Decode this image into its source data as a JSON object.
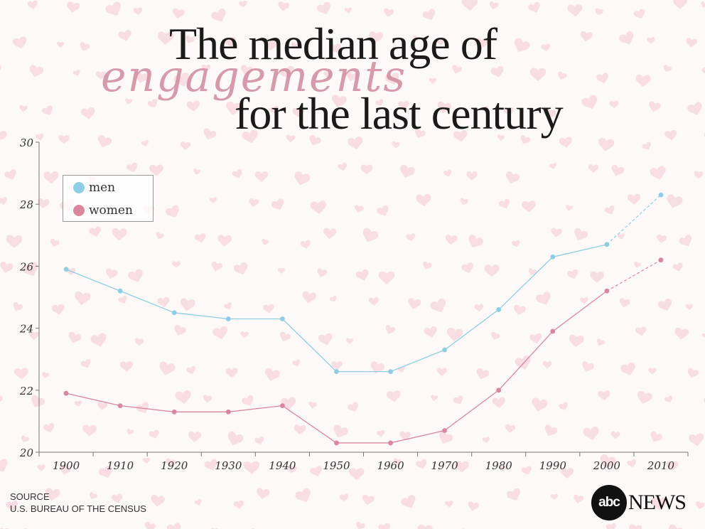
{
  "title": {
    "line1": "The median age of",
    "script": "engagements",
    "line3": "for the last century"
  },
  "legend": {
    "men": "men",
    "women": "women"
  },
  "source": {
    "label": "SOURCE",
    "text": "U.S. BUREAU OF THE CENSUS"
  },
  "logo": {
    "circle": "abc",
    "text": "NEWS"
  },
  "colors": {
    "men": "#8ecde3",
    "women": "#d9879e",
    "heart": "#f5d3d9",
    "axis": "#777777"
  },
  "chart_data": {
    "type": "line",
    "title": "The median age of engagements for the last century",
    "xlabel": "",
    "ylabel": "",
    "categories": [
      "1900",
      "1910",
      "1920",
      "1930",
      "1940",
      "1950",
      "1960",
      "1970",
      "1980",
      "1990",
      "2000",
      "2010"
    ],
    "ylim": [
      20,
      30
    ],
    "yticks": [
      "30",
      "28",
      "26",
      "24",
      "22",
      "20"
    ],
    "series": [
      {
        "name": "men",
        "color": "#8ecde3",
        "values": [
          25.9,
          25.2,
          24.5,
          24.3,
          24.3,
          22.6,
          22.6,
          23.3,
          24.6,
          26.3,
          26.7,
          28.3
        ]
      },
      {
        "name": "women",
        "color": "#d9879e",
        "values": [
          21.9,
          21.5,
          21.3,
          21.3,
          21.5,
          20.3,
          20.3,
          20.7,
          22.0,
          23.9,
          25.2,
          26.2
        ]
      }
    ],
    "legend_position": "top-left"
  }
}
